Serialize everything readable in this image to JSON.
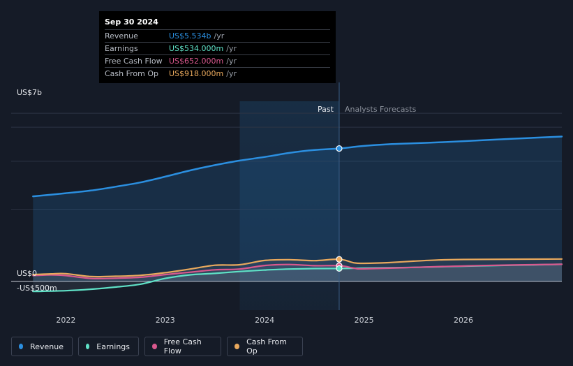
{
  "colors": {
    "revenue": "#2b8fe0",
    "earnings": "#5fe1c6",
    "free_cash_flow": "#d9588e",
    "cash_from_op": "#e9a95d",
    "background": "#151b27"
  },
  "tooltip": {
    "date": "Sep 30 2024",
    "rows": [
      {
        "label": "Revenue",
        "value": "US$5.534b",
        "unit": "/yr",
        "color": "#2b8fe0"
      },
      {
        "label": "Earnings",
        "value": "US$534.000m",
        "unit": "/yr",
        "color": "#5fe1c6"
      },
      {
        "label": "Free Cash Flow",
        "value": "US$652.000m",
        "unit": "/yr",
        "color": "#d9588e"
      },
      {
        "label": "Cash From Op",
        "value": "US$918.000m",
        "unit": "/yr",
        "color": "#e9a95d"
      }
    ]
  },
  "legend": [
    {
      "label": "Revenue",
      "color": "#2b8fe0"
    },
    {
      "label": "Earnings",
      "color": "#5fe1c6"
    },
    {
      "label": "Free Cash Flow",
      "color": "#d9588e"
    },
    {
      "label": "Cash From Op",
      "color": "#e9a95d"
    }
  ],
  "chart_data": {
    "type": "line",
    "title": "",
    "xlabel": "",
    "ylabel": "",
    "y_top_label": "US$7b",
    "y_zero_label": "US$0",
    "y_bottom_label": "-US$500m",
    "past_label": "Past",
    "forecast_label": "Analysts Forecasts",
    "divider_x": 2024.75,
    "past_shade_start": 2023.75,
    "xlim": [
      2021.45,
      2026.99
    ],
    "ylim": [
      -1.2,
      7.5
    ],
    "x_ticks": [
      {
        "value": 2022,
        "label": "2022"
      },
      {
        "value": 2023,
        "label": "2023"
      },
      {
        "value": 2024,
        "label": "2024"
      },
      {
        "value": 2025,
        "label": "2025"
      },
      {
        "value": 2026,
        "label": "2026"
      }
    ],
    "gridlines": [
      7.0,
      5.0,
      3.0,
      0.0
    ],
    "series": [
      {
        "name": "Revenue",
        "key": "revenue",
        "points": [
          [
            2021.67,
            3.54
          ],
          [
            2022.0,
            3.67
          ],
          [
            2022.25,
            3.78
          ],
          [
            2022.5,
            3.94
          ],
          [
            2022.75,
            4.12
          ],
          [
            2023.0,
            4.36
          ],
          [
            2023.25,
            4.62
          ],
          [
            2023.5,
            4.84
          ],
          [
            2023.75,
            5.03
          ],
          [
            2024.0,
            5.18
          ],
          [
            2024.25,
            5.35
          ],
          [
            2024.5,
            5.47
          ],
          [
            2024.75,
            5.534
          ],
          [
            2025.0,
            5.64
          ],
          [
            2025.25,
            5.71
          ],
          [
            2025.5,
            5.75
          ],
          [
            2025.75,
            5.79
          ],
          [
            2026.0,
            5.84
          ],
          [
            2026.5,
            5.94
          ],
          [
            2026.99,
            6.03
          ]
        ]
      },
      {
        "name": "Earnings",
        "key": "earnings",
        "points": [
          [
            2021.67,
            -0.42
          ],
          [
            2022.0,
            -0.39
          ],
          [
            2022.25,
            -0.33
          ],
          [
            2022.5,
            -0.24
          ],
          [
            2022.75,
            -0.12
          ],
          [
            2023.0,
            0.12
          ],
          [
            2023.25,
            0.27
          ],
          [
            2023.5,
            0.33
          ],
          [
            2023.75,
            0.41
          ],
          [
            2024.0,
            0.47
          ],
          [
            2024.25,
            0.51
          ],
          [
            2024.5,
            0.53
          ],
          [
            2024.75,
            0.534
          ],
          [
            2025.0,
            0.55
          ],
          [
            2025.5,
            0.58
          ],
          [
            2026.0,
            0.63
          ],
          [
            2026.5,
            0.67
          ],
          [
            2026.99,
            0.71
          ]
        ]
      },
      {
        "name": "Free Cash Flow",
        "key": "free_cash_flow",
        "points": [
          [
            2021.67,
            0.24
          ],
          [
            2021.85,
            0.27
          ],
          [
            2022.0,
            0.24
          ],
          [
            2022.25,
            0.12
          ],
          [
            2022.5,
            0.13
          ],
          [
            2022.75,
            0.17
          ],
          [
            2023.0,
            0.28
          ],
          [
            2023.25,
            0.38
          ],
          [
            2023.5,
            0.48
          ],
          [
            2023.75,
            0.51
          ],
          [
            2024.0,
            0.66
          ],
          [
            2024.25,
            0.7
          ],
          [
            2024.5,
            0.65
          ],
          [
            2024.75,
            0.652
          ],
          [
            2024.9,
            0.55
          ],
          [
            2025.0,
            0.52
          ],
          [
            2025.5,
            0.58
          ],
          [
            2026.0,
            0.64
          ],
          [
            2026.5,
            0.68
          ],
          [
            2026.99,
            0.71
          ]
        ]
      },
      {
        "name": "Cash From Op",
        "key": "cash_from_op",
        "points": [
          [
            2021.67,
            0.28
          ],
          [
            2021.85,
            0.31
          ],
          [
            2022.0,
            0.32
          ],
          [
            2022.25,
            0.2
          ],
          [
            2022.5,
            0.21
          ],
          [
            2022.75,
            0.25
          ],
          [
            2023.0,
            0.36
          ],
          [
            2023.25,
            0.51
          ],
          [
            2023.5,
            0.67
          ],
          [
            2023.75,
            0.69
          ],
          [
            2024.0,
            0.87
          ],
          [
            2024.25,
            0.9
          ],
          [
            2024.5,
            0.86
          ],
          [
            2024.75,
            0.918
          ],
          [
            2024.9,
            0.77
          ],
          [
            2025.0,
            0.75
          ],
          [
            2025.25,
            0.78
          ],
          [
            2025.5,
            0.84
          ],
          [
            2025.75,
            0.89
          ],
          [
            2026.0,
            0.91
          ],
          [
            2026.5,
            0.92
          ],
          [
            2026.99,
            0.93
          ]
        ]
      }
    ],
    "markers": [
      {
        "series": "revenue",
        "x": 2024.75,
        "y": 5.534
      },
      {
        "series": "cash_from_op",
        "x": 2024.75,
        "y": 0.918
      },
      {
        "series": "free_cash_flow",
        "x": 2024.75,
        "y": 0.652
      },
      {
        "series": "earnings",
        "x": 2024.75,
        "y": 0.534
      }
    ]
  }
}
